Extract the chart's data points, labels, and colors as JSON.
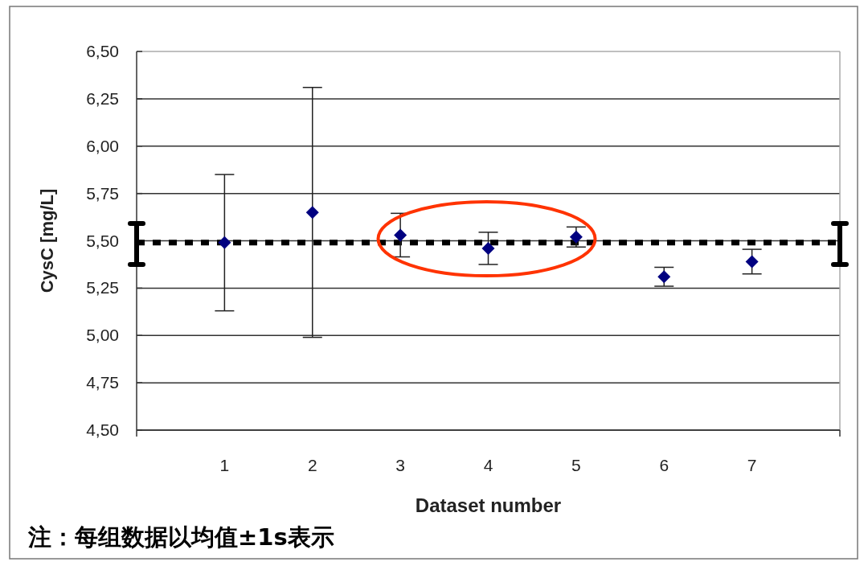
{
  "chart_data": {
    "type": "scatter",
    "xlabel": "Dataset number",
    "ylabel": "CysC [mg/L]",
    "x": [
      1,
      2,
      3,
      4,
      5,
      6,
      7
    ],
    "values": [
      5.49,
      5.65,
      5.53,
      5.46,
      5.52,
      5.31,
      5.39
    ],
    "errors": [
      0.36,
      0.66,
      0.115,
      0.085,
      0.053,
      0.05,
      0.065
    ],
    "color": "#000080",
    "marker": "diamond",
    "grid": "y",
    "xlim": [
      0,
      8
    ],
    "xticks": [
      1,
      2,
      3,
      4,
      5,
      6,
      7
    ],
    "ylim": [
      4.5,
      6.5
    ],
    "yticks": [
      {
        "value": 4.5,
        "label": "4,50"
      },
      {
        "value": 4.75,
        "label": "4,75"
      },
      {
        "value": 5,
        "label": "5,00"
      },
      {
        "value": 5.25,
        "label": "5,25"
      },
      {
        "value": 5.5,
        "label": "5,50"
      },
      {
        "value": 5.75,
        "label": "5,75"
      },
      {
        "value": 6,
        "label": "6,00"
      },
      {
        "value": 6.25,
        "label": "6,25"
      },
      {
        "value": 6.5,
        "label": "6,50"
      }
    ],
    "ref_lines": [
      {
        "axis": "y",
        "value": 5.49,
        "line_style": "dotted",
        "color": "#000000"
      }
    ],
    "annotations": [
      "注：每组数据以均值±1s表示"
    ]
  }
}
